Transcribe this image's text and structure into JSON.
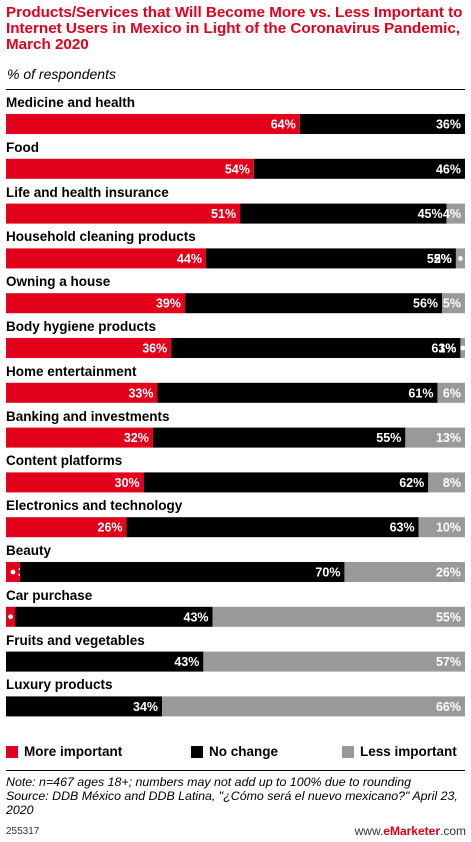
{
  "title": "Products/Services that Will Become More vs. Less Important to Internet Users in Mexico in Light of the Coronavirus Pandemic, March 2020",
  "subtitle": "% of respondents",
  "colors": {
    "more": "#e3001b",
    "no_change": "#000000",
    "less": "#999999"
  },
  "chart_data": {
    "type": "bar",
    "stacked": true,
    "orientation": "horizontal",
    "categories": [
      "Medicine and health",
      "Food",
      "Life and health insurance",
      "Household cleaning products",
      "Owning a house",
      "Body hygiene products",
      "Home entertainment",
      "Banking and investments",
      "Content platforms",
      "Electronics and technology",
      "Beauty",
      "Car purchase",
      "Fruits and vegetables",
      "Luxury products"
    ],
    "series": [
      {
        "name": "More important",
        "values": [
          64,
          54,
          51,
          44,
          39,
          36,
          33,
          32,
          30,
          26,
          3,
          2,
          0,
          0
        ]
      },
      {
        "name": "No change",
        "values": [
          36,
          46,
          45,
          55,
          56,
          63,
          61,
          55,
          62,
          63,
          70,
          43,
          43,
          34
        ]
      },
      {
        "name": "Less important",
        "values": [
          0,
          0,
          4,
          2,
          5,
          1,
          6,
          13,
          8,
          10,
          26,
          55,
          57,
          66
        ]
      }
    ],
    "xlim": [
      0,
      100
    ],
    "legend": "bottom"
  },
  "note": "Note: n=467 ages 18+; numbers may not add up to 100% due to rounding",
  "source": "Source: DDB México and DDB Latina, \"¿Cómo será el nuevo mexicano?\" April 23, 2020",
  "footer": {
    "id": "255317",
    "brand_prefix": "www.",
    "brand_name": "eMarketer",
    "brand_suffix": ".com"
  }
}
